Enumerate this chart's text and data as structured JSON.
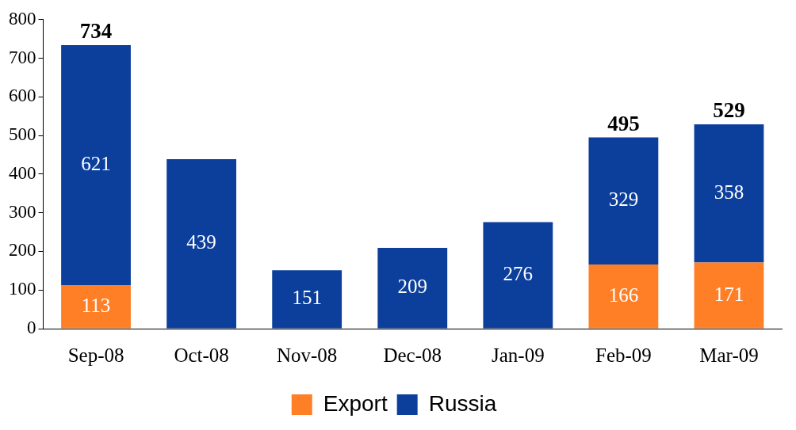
{
  "chart_data": {
    "type": "bar",
    "stacked": true,
    "categories": [
      "Sep-08",
      "Oct-08",
      "Nov-08",
      "Dec-08",
      "Jan-09",
      "Feb-09",
      "Mar-09"
    ],
    "series": [
      {
        "name": "Export",
        "color": "#ff7f27",
        "values": [
          113,
          null,
          null,
          null,
          null,
          166,
          171
        ]
      },
      {
        "name": "Russia",
        "color": "#0c3f9c",
        "values": [
          621,
          439,
          151,
          209,
          276,
          329,
          358
        ]
      }
    ],
    "totals": [
      "734",
      null,
      null,
      null,
      null,
      "495",
      "529"
    ],
    "data_labels": true,
    "ylim": [
      0,
      800
    ],
    "yticks": [
      0,
      100,
      200,
      300,
      400,
      500,
      600,
      700,
      800
    ],
    "grid": false,
    "legend": "bottom"
  }
}
